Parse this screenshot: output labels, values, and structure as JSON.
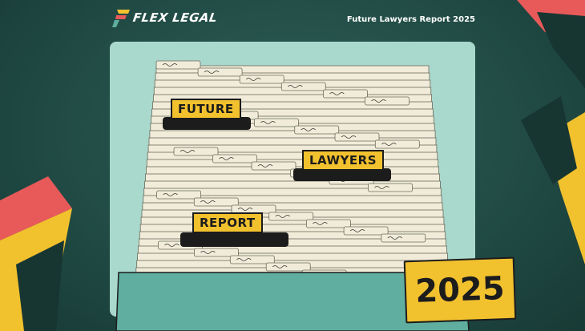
{
  "brand": {
    "name": "FLEX LEGAL",
    "colors": {
      "background": "#1e4640",
      "panel": "#a9d8cc",
      "card": "#f1ecd9",
      "label": "#f2c12e",
      "accent_red": "#e85a5a",
      "drawer": "#5fae9f"
    }
  },
  "header": {
    "title": "Future Lawyers Report 2025"
  },
  "labels": {
    "future": "FUTURE",
    "lawyers": "LAWYERS",
    "report": "REPORT"
  },
  "year_tag": "2025"
}
